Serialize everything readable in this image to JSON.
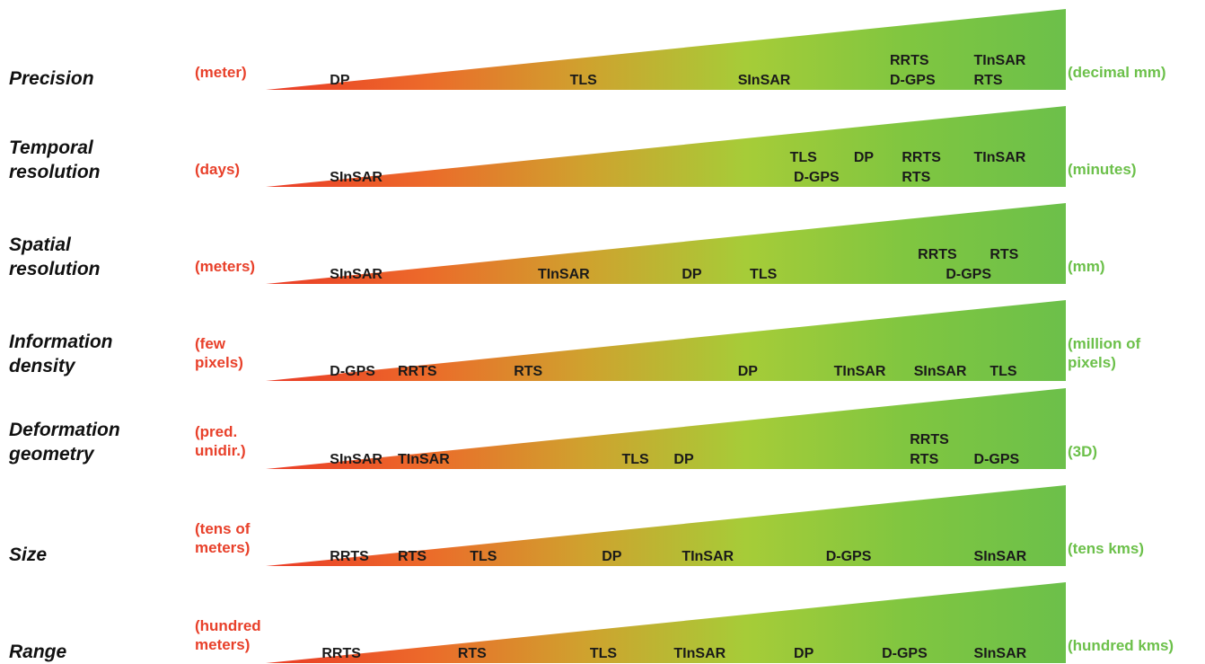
{
  "rows": [
    {
      "category": [
        "Precision"
      ],
      "low": [
        "(meter)"
      ],
      "high": [
        "(decimal mm)"
      ],
      "techs": [
        {
          "name": "DP",
          "pos": 0.08,
          "level": 0
        },
        {
          "name": "TLS",
          "pos": 0.38,
          "level": 0
        },
        {
          "name": "SInSAR",
          "pos": 0.59,
          "level": 0
        },
        {
          "name": "RRTS",
          "pos": 0.78,
          "level": 1
        },
        {
          "name": "D-GPS",
          "pos": 0.78,
          "level": 0
        },
        {
          "name": "TInSAR",
          "pos": 0.885,
          "level": 1
        },
        {
          "name": "RTS",
          "pos": 0.885,
          "level": 0
        }
      ]
    },
    {
      "category": [
        "Temporal",
        "resolution"
      ],
      "low": [
        "(days)"
      ],
      "high": [
        "(minutes)"
      ],
      "techs": [
        {
          "name": "SInSAR",
          "pos": 0.08,
          "level": 0
        },
        {
          "name": "TLS",
          "pos": 0.655,
          "level": 1
        },
        {
          "name": "DP",
          "pos": 0.735,
          "level": 1
        },
        {
          "name": "RRTS",
          "pos": 0.795,
          "level": 1
        },
        {
          "name": "TInSAR",
          "pos": 0.885,
          "level": 1
        },
        {
          "name": "D-GPS",
          "pos": 0.66,
          "level": 0
        },
        {
          "name": "RTS",
          "pos": 0.795,
          "level": 0
        }
      ]
    },
    {
      "category": [
        "Spatial",
        "resolution"
      ],
      "low": [
        "(meters)"
      ],
      "high": [
        "(mm)"
      ],
      "techs": [
        {
          "name": "SInSAR",
          "pos": 0.08,
          "level": 0
        },
        {
          "name": "TInSAR",
          "pos": 0.34,
          "level": 0
        },
        {
          "name": "DP",
          "pos": 0.52,
          "level": 0
        },
        {
          "name": "TLS",
          "pos": 0.605,
          "level": 0
        },
        {
          "name": "RRTS",
          "pos": 0.815,
          "level": 1
        },
        {
          "name": "RTS",
          "pos": 0.905,
          "level": 1
        },
        {
          "name": "D-GPS",
          "pos": 0.85,
          "level": 0
        }
      ]
    },
    {
      "category": [
        "Information",
        "density"
      ],
      "low": [
        "(few",
        "pixels)"
      ],
      "high": [
        "(million of",
        "pixels)"
      ],
      "techs": [
        {
          "name": "D-GPS",
          "pos": 0.08,
          "level": 0
        },
        {
          "name": "RRTS",
          "pos": 0.165,
          "level": 0
        },
        {
          "name": "RTS",
          "pos": 0.31,
          "level": 0
        },
        {
          "name": "DP",
          "pos": 0.59,
          "level": 0
        },
        {
          "name": "TInSAR",
          "pos": 0.71,
          "level": 0
        },
        {
          "name": "SInSAR",
          "pos": 0.81,
          "level": 0
        },
        {
          "name": "TLS",
          "pos": 0.905,
          "level": 0
        }
      ]
    },
    {
      "category": [
        "Deformation",
        "geometry"
      ],
      "low": [
        "(pred.",
        "unidir.)"
      ],
      "high": [
        "(3D)"
      ],
      "techs": [
        {
          "name": "SInSAR",
          "pos": 0.08,
          "level": 0
        },
        {
          "name": "TInSAR",
          "pos": 0.165,
          "level": 0
        },
        {
          "name": "TLS",
          "pos": 0.445,
          "level": 0
        },
        {
          "name": "DP",
          "pos": 0.51,
          "level": 0
        },
        {
          "name": "RRTS",
          "pos": 0.805,
          "level": 1
        },
        {
          "name": "RTS",
          "pos": 0.805,
          "level": 0
        },
        {
          "name": "D-GPS",
          "pos": 0.885,
          "level": 0
        }
      ]
    },
    {
      "category": [
        "Size"
      ],
      "low": [
        "(tens of",
        "meters)"
      ],
      "high": [
        "(tens kms)"
      ],
      "techs": [
        {
          "name": "RRTS",
          "pos": 0.08,
          "level": 0
        },
        {
          "name": "RTS",
          "pos": 0.165,
          "level": 0
        },
        {
          "name": "TLS",
          "pos": 0.255,
          "level": 0
        },
        {
          "name": "DP",
          "pos": 0.42,
          "level": 0
        },
        {
          "name": "TInSAR",
          "pos": 0.52,
          "level": 0
        },
        {
          "name": "D-GPS",
          "pos": 0.7,
          "level": 0
        },
        {
          "name": "SInSAR",
          "pos": 0.885,
          "level": 0
        }
      ]
    },
    {
      "category": [
        "Range"
      ],
      "low": [
        "(hundred",
        "meters)"
      ],
      "high": [
        "(hundred kms)"
      ],
      "techs": [
        {
          "name": "RRTS",
          "pos": 0.07,
          "level": 0
        },
        {
          "name": "RTS",
          "pos": 0.24,
          "level": 0
        },
        {
          "name": "TLS",
          "pos": 0.405,
          "level": 0
        },
        {
          "name": "TInSAR",
          "pos": 0.51,
          "level": 0
        },
        {
          "name": "DP",
          "pos": 0.66,
          "level": 0
        },
        {
          "name": "D-GPS",
          "pos": 0.77,
          "level": 0
        },
        {
          "name": "SInSAR",
          "pos": 0.885,
          "level": 0
        }
      ]
    }
  ],
  "colors": {
    "low": "#e8402a",
    "mid": "#a6cc38",
    "high": "#6cc04a",
    "text": "#111111"
  }
}
